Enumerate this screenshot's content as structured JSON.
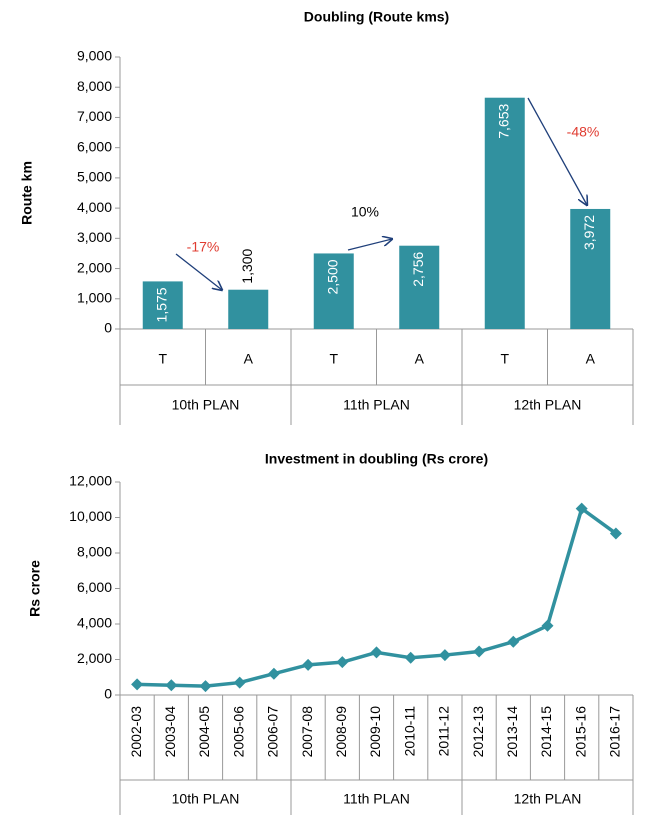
{
  "chart_data": [
    {
      "type": "bar",
      "title": "Doubling (Route kms)",
      "y_label": "Route km",
      "categories": [
        "T",
        "A",
        "T",
        "A",
        "T",
        "A"
      ],
      "group_labels": [
        "10th PLAN",
        "11th PLAN",
        "12th PLAN"
      ],
      "values": [
        1575,
        1300,
        2500,
        2756,
        7653,
        3972
      ],
      "value_labels": [
        "1,575",
        "1,300",
        "2,500",
        "2,756",
        "7,653",
        "3,972"
      ],
      "color": "#31919f",
      "ylim": [
        0,
        9000
      ],
      "yticks": [
        0,
        {
          "value": 1000,
          "label": "1,000"
        },
        {
          "value": 2000,
          "label": "2,000"
        },
        {
          "value": 3000,
          "label": "3,000"
        },
        {
          "value": 4000,
          "label": "4,000"
        },
        {
          "value": 5000,
          "label": "5,000"
        },
        {
          "value": 6000,
          "label": "6,000"
        },
        {
          "value": 7000,
          "label": "7,000"
        },
        {
          "value": 8000,
          "label": "8,000"
        },
        {
          "value": 9000,
          "label": "9,000"
        }
      ],
      "annotations": [
        {
          "text": "-17%",
          "color": "#e03c31"
        },
        {
          "text": "10%",
          "color": "#000000"
        },
        {
          "text": "-48%",
          "color": "#e03c31"
        }
      ],
      "grid": false
    },
    {
      "type": "line",
      "title": "Investment in doubling (Rs crore)",
      "y_label": "Rs crore",
      "categories": [
        "2002-03",
        "2003-04",
        "2004-05",
        "2005-06",
        "2006-07",
        "2007-08",
        "2008-09",
        "2009-10",
        "2010-11",
        "2011-12",
        "2012-13",
        "2013-14",
        "2014-15",
        "2015-16",
        "2016-17"
      ],
      "group_labels": [
        "10th PLAN",
        "11th PLAN",
        "12th PLAN"
      ],
      "values": [
        600,
        550,
        500,
        700,
        1200,
        1700,
        1850,
        2400,
        2100,
        2250,
        2450,
        3000,
        3900,
        10500,
        9100
      ],
      "color": "#31919f",
      "ylim": [
        0,
        12000
      ],
      "yticks": [
        0,
        {
          "value": 2000,
          "label": "2,000"
        },
        {
          "value": 4000,
          "label": "4,000"
        },
        {
          "value": 6000,
          "label": "6,000"
        },
        {
          "value": 8000,
          "label": "8,000"
        },
        {
          "value": 10000,
          "label": "10,000"
        },
        {
          "value": 12000,
          "label": "12,000"
        }
      ],
      "grid": false
    }
  ]
}
